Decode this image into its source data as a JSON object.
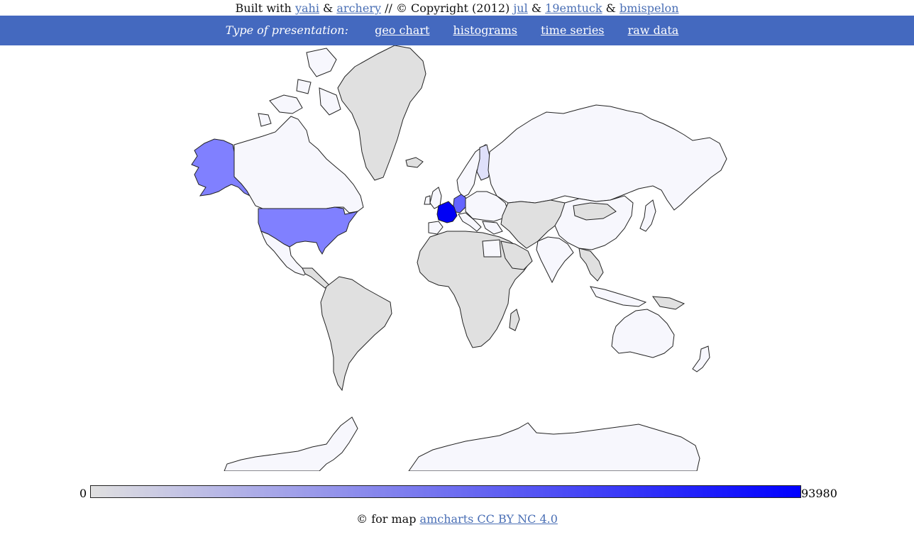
{
  "credits": {
    "built_with": "Built with",
    "link1": "yahi",
    "amp1": "&",
    "link2": "archery",
    "copyright": "// © Copyright (2012)",
    "link3": "jul",
    "amp2": "&",
    "link4": "19emtuck",
    "amp3": "&",
    "link5": "bmispelon"
  },
  "navbar": {
    "title": "Type of presentation:",
    "links": [
      "geo chart",
      "histograms",
      "time series",
      "raw data"
    ]
  },
  "map": {
    "colors": {
      "no_data": "#e0e0e0",
      "low": "#f7f7fd",
      "finland": "#dfe0fa",
      "usa": "#8080ff",
      "belgium_germany": "#6464ff",
      "france": "#0000f5",
      "scale_min_color": "#e0e0e0",
      "scale_max_color": "#0000ff"
    }
  },
  "legend": {
    "min": "0",
    "max": "93980"
  },
  "footer": {
    "prefix": "© for map",
    "link": "amcharts CC BY NC 4.0"
  }
}
